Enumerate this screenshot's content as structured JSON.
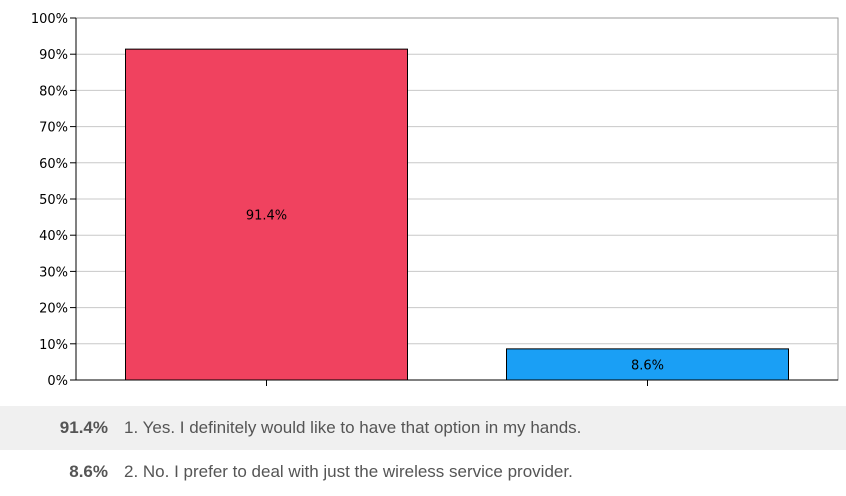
{
  "chart_data": {
    "type": "bar",
    "categories": [
      "1. Yes. I definitely would like to have that option in my hands.",
      "2. No. I prefer to deal with just the wireless service provider."
    ],
    "values": [
      91.4,
      8.6
    ],
    "value_labels": [
      "91.4%",
      "8.6%"
    ],
    "colors": [
      "#f0425f",
      "#1a9ff5"
    ],
    "yticks": [
      "0%",
      "10%",
      "20%",
      "30%",
      "40%",
      "50%",
      "60%",
      "70%",
      "80%",
      "90%",
      "100%"
    ],
    "ylim": [
      0,
      100
    ],
    "grid": true,
    "legend_position": "bottom"
  },
  "legend": {
    "rows": [
      {
        "percent": "91.4%",
        "label": "1. Yes. I definitely would like to have that option in my hands."
      },
      {
        "percent": "8.6%",
        "label": "2. No. I prefer to deal with just the wireless service provider."
      }
    ]
  }
}
